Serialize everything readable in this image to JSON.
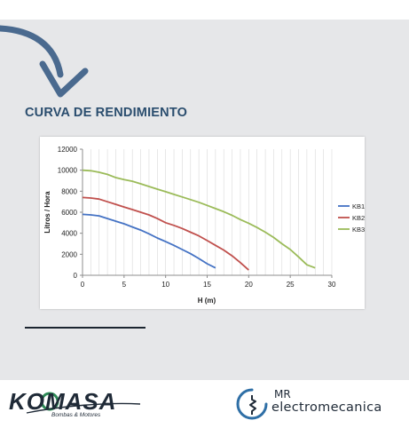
{
  "heading": "CURVA DE RENDIMIENTO",
  "colors": {
    "panel": "#e6e7e9",
    "heading": "#2a4d6e",
    "arrow": "#4a6a8f",
    "kb1": "#4472c4",
    "kb2": "#c0504d",
    "kb3": "#9bbb59"
  },
  "icons": [
    "curved-arrow-icon",
    "komasa-logo",
    "mr-electromecanica-emblem-icon"
  ],
  "chart_data": {
    "type": "line",
    "title": "",
    "xlabel": "H (m)",
    "ylabel": "Litros / Hora",
    "xlim": [
      0,
      30
    ],
    "ylim": [
      0,
      12000
    ],
    "x_ticks": [
      "0",
      "5",
      "10",
      "15",
      "20",
      "25",
      "30"
    ],
    "y_ticks": [
      "0",
      "2000",
      "4000",
      "6000",
      "8000",
      "10000",
      "12000"
    ],
    "grid": "vertical minor lines",
    "legend_position": "right",
    "series": [
      {
        "name": "KB1",
        "color": "#4472c4",
        "x": [
          0,
          1,
          2,
          3,
          4,
          5,
          6,
          7,
          8,
          9,
          10,
          11,
          12,
          13,
          14,
          15,
          16
        ],
        "y": [
          5800,
          5750,
          5650,
          5400,
          5150,
          4900,
          4600,
          4300,
          3950,
          3550,
          3200,
          2850,
          2450,
          2050,
          1600,
          1100,
          700
        ]
      },
      {
        "name": "KB2",
        "color": "#c0504d",
        "x": [
          0,
          1,
          2,
          3,
          4,
          5,
          6,
          7,
          8,
          9,
          10,
          11,
          12,
          13,
          14,
          15,
          16,
          17,
          18,
          19,
          20
        ],
        "y": [
          7400,
          7350,
          7250,
          7000,
          6750,
          6500,
          6250,
          6000,
          5750,
          5400,
          5000,
          4750,
          4450,
          4100,
          3750,
          3300,
          2850,
          2400,
          1850,
          1200,
          500
        ]
      },
      {
        "name": "KB3",
        "color": "#9bbb59",
        "x": [
          0,
          1,
          2,
          3,
          4,
          5,
          6,
          7,
          8,
          9,
          10,
          11,
          12,
          13,
          14,
          15,
          16,
          17,
          18,
          19,
          20,
          21,
          22,
          23,
          24,
          25,
          26,
          27,
          28
        ],
        "y": [
          10000,
          9950,
          9800,
          9600,
          9300,
          9100,
          8950,
          8700,
          8450,
          8200,
          7950,
          7700,
          7450,
          7200,
          6950,
          6650,
          6350,
          6050,
          5700,
          5300,
          4950,
          4550,
          4100,
          3600,
          3000,
          2450,
          1750,
          1000,
          700
        ]
      }
    ]
  },
  "brands": {
    "komasa_name": "KOMASA",
    "komasa_tagline": "Bombas & Motores",
    "mr_top": "MR",
    "mr_bottom": "electromecanica"
  }
}
